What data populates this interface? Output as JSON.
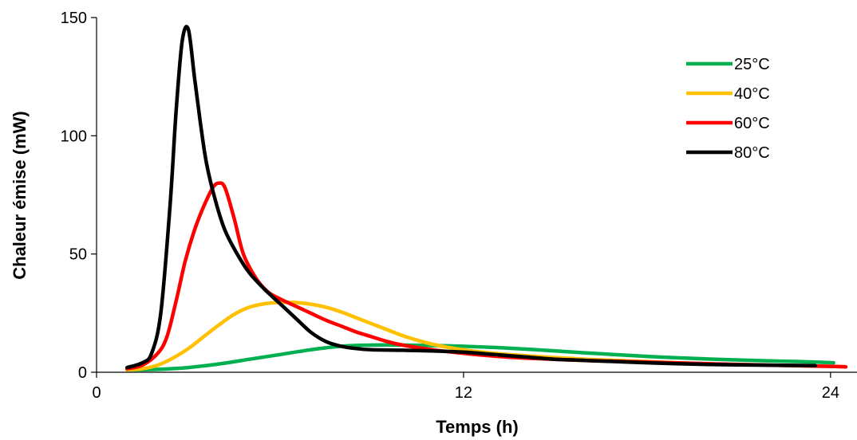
{
  "chart_data": {
    "type": "line",
    "title": "",
    "xlabel": "Temps (h)",
    "ylabel": "Chaleur émise (mW)",
    "xlim": [
      0,
      24.5
    ],
    "ylim": [
      0,
      150
    ],
    "xticks": [
      0,
      12,
      24
    ],
    "yticks": [
      0,
      50,
      100,
      150
    ],
    "xtick_labels": [
      "0",
      "12",
      "24"
    ],
    "ytick_labels": [
      "0",
      "50",
      "100",
      "150"
    ],
    "grid": false,
    "legend_position": "top-right",
    "series": [
      {
        "name": "25°C",
        "color": "#00b050",
        "points": [
          [
            1,
            1
          ],
          [
            2,
            1.2
          ],
          [
            3,
            2
          ],
          [
            4,
            3.5
          ],
          [
            5,
            5.5
          ],
          [
            6,
            7.5
          ],
          [
            7,
            9.5
          ],
          [
            8,
            11
          ],
          [
            9,
            11.5
          ],
          [
            10,
            11.5
          ],
          [
            11,
            11.3
          ],
          [
            12,
            11
          ],
          [
            13,
            10.5
          ],
          [
            14,
            9.8
          ],
          [
            15,
            9
          ],
          [
            16,
            8.2
          ],
          [
            17,
            7.4
          ],
          [
            18,
            6.7
          ],
          [
            19,
            6.1
          ],
          [
            20,
            5.6
          ],
          [
            21,
            5.2
          ],
          [
            22,
            4.8
          ],
          [
            23,
            4.5
          ],
          [
            24.1,
            4
          ]
        ]
      },
      {
        "name": "40°C",
        "color": "#ffc000",
        "points": [
          [
            1,
            1
          ],
          [
            1.5,
            1.5
          ],
          [
            2,
            3
          ],
          [
            2.5,
            6
          ],
          [
            3,
            10
          ],
          [
            3.5,
            15
          ],
          [
            4,
            20
          ],
          [
            4.5,
            24.5
          ],
          [
            5,
            27.5
          ],
          [
            5.5,
            29
          ],
          [
            6,
            29.5
          ],
          [
            6.5,
            29.5
          ],
          [
            7,
            28.8
          ],
          [
            7.5,
            27.5
          ],
          [
            8,
            25.5
          ],
          [
            8.5,
            23
          ],
          [
            9,
            20.5
          ],
          [
            9.5,
            18
          ],
          [
            10,
            15.5
          ],
          [
            10.5,
            13.5
          ],
          [
            11,
            11.8
          ],
          [
            11.5,
            10.5
          ],
          [
            12,
            9.5
          ],
          [
            13,
            8
          ],
          [
            14,
            7
          ],
          [
            15,
            6.2
          ],
          [
            16,
            5.5
          ],
          [
            18,
            4.5
          ],
          [
            20,
            3.5
          ],
          [
            22,
            3
          ],
          [
            24,
            2.5
          ],
          [
            24.5,
            2.3
          ]
        ]
      },
      {
        "name": "60°C",
        "color": "#ff0000",
        "points": [
          [
            1,
            1.5
          ],
          [
            1.5,
            3
          ],
          [
            2,
            8
          ],
          [
            2.3,
            15
          ],
          [
            2.6,
            30
          ],
          [
            2.9,
            47
          ],
          [
            3.2,
            60
          ],
          [
            3.5,
            70
          ],
          [
            3.8,
            78
          ],
          [
            4,
            80
          ],
          [
            4.2,
            78
          ],
          [
            4.5,
            65
          ],
          [
            4.8,
            50
          ],
          [
            5.2,
            40
          ],
          [
            5.6,
            34
          ],
          [
            6,
            31
          ],
          [
            6.5,
            28
          ],
          [
            7,
            25
          ],
          [
            7.5,
            22
          ],
          [
            8,
            19.5
          ],
          [
            8.5,
            17
          ],
          [
            9,
            15
          ],
          [
            9.5,
            13
          ],
          [
            10,
            11.5
          ],
          [
            11,
            9.5
          ],
          [
            12,
            8
          ],
          [
            13,
            6.8
          ],
          [
            14,
            6
          ],
          [
            16,
            5
          ],
          [
            18,
            4.3
          ],
          [
            20,
            3.6
          ],
          [
            22,
            3
          ],
          [
            24,
            2.5
          ],
          [
            24.5,
            2.3
          ]
        ]
      },
      {
        "name": "80°C",
        "color": "#000000",
        "points": [
          [
            1,
            2
          ],
          [
            1.5,
            4
          ],
          [
            1.8,
            8
          ],
          [
            2.1,
            25
          ],
          [
            2.4,
            70
          ],
          [
            2.6,
            110
          ],
          [
            2.8,
            140
          ],
          [
            3,
            145
          ],
          [
            3.2,
            125
          ],
          [
            3.4,
            105
          ],
          [
            3.6,
            88
          ],
          [
            3.9,
            72
          ],
          [
            4.2,
            60
          ],
          [
            4.6,
            50
          ],
          [
            5,
            42
          ],
          [
            5.5,
            35
          ],
          [
            6,
            29
          ],
          [
            6.5,
            23
          ],
          [
            7,
            17
          ],
          [
            7.5,
            13
          ],
          [
            8,
            11
          ],
          [
            8.5,
            10
          ],
          [
            9,
            9.5
          ],
          [
            10,
            9.3
          ],
          [
            11,
            9
          ],
          [
            12,
            8.5
          ],
          [
            13,
            7.5
          ],
          [
            14,
            6.5
          ],
          [
            15,
            5.5
          ],
          [
            16,
            5
          ],
          [
            18,
            4
          ],
          [
            20,
            3.3
          ],
          [
            22,
            3
          ],
          [
            23.5,
            2.8
          ]
        ]
      }
    ]
  }
}
